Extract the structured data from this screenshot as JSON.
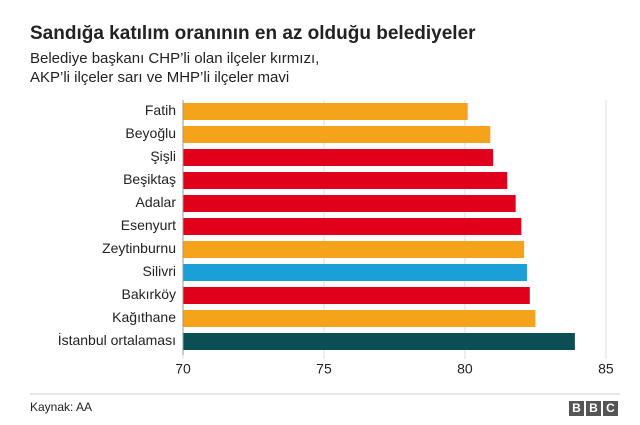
{
  "chart_data": {
    "type": "bar",
    "orientation": "horizontal",
    "title": "Sandığa katılım oranının en az olduğu belediyeler",
    "subtitle": [
      "Belediye başkanı CHP’li olan ilçeler kırmızı,",
      "AKP’li ilçeler sarı ve MHP’li ilçeler mavi"
    ],
    "categories": [
      "Fatih",
      "Beyoğlu",
      "Şişli",
      "Beşiktaş",
      "Adalar",
      "Esenyurt",
      "Zeytinburnu",
      "Silivri",
      "Bakırköy",
      "Kağıthane",
      "İstanbul ortalaması"
    ],
    "values": [
      80.1,
      80.9,
      81.0,
      81.5,
      81.8,
      82.0,
      82.1,
      82.2,
      82.3,
      82.5,
      83.9
    ],
    "colors": [
      "#f5a31a",
      "#f5a31a",
      "#e0001b",
      "#e0001b",
      "#e0001b",
      "#e0001b",
      "#f5a31a",
      "#1a9fd9",
      "#e0001b",
      "#f5a31a",
      "#0b4f55"
    ],
    "xlim": [
      70,
      85.5
    ],
    "xticks": [
      70,
      75,
      80,
      85
    ],
    "grid": true,
    "source": "Kaynak: AA",
    "logo": [
      "B",
      "B",
      "C"
    ]
  }
}
